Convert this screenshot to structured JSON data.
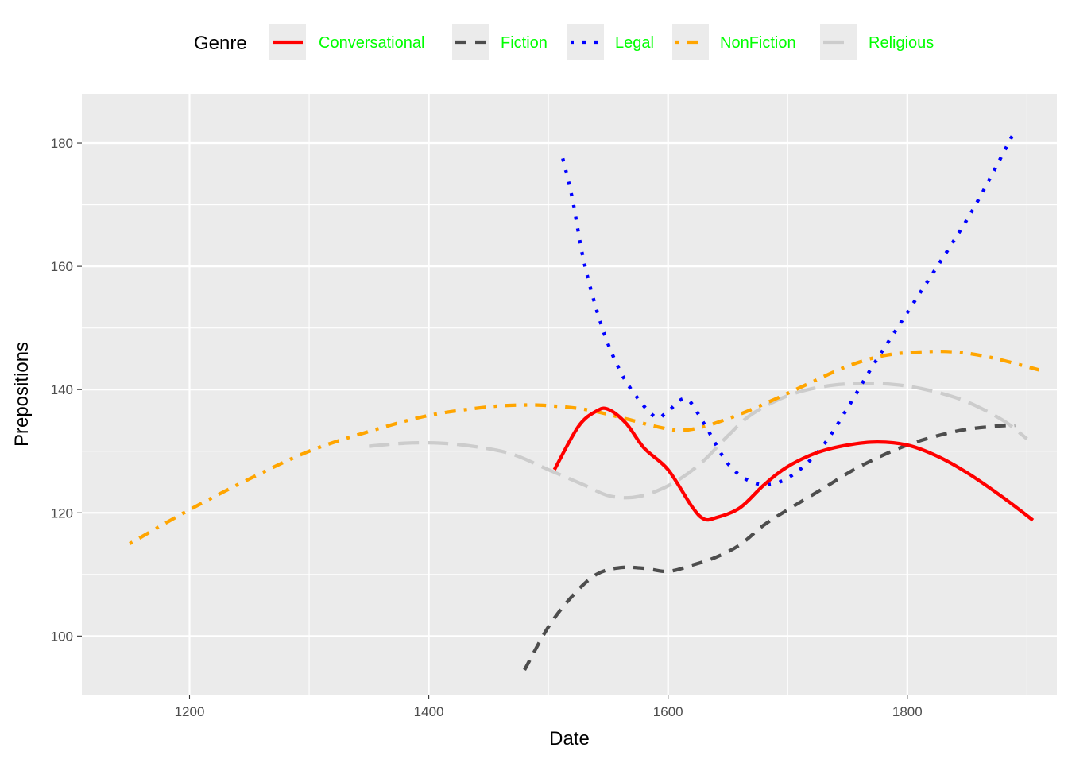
{
  "colors": {
    "panel_bg": "#ebebeb",
    "grid": "#ffffff",
    "legend_label": "#00ff00",
    "Conversational": "#ff0000",
    "Fiction": "#4d4d4d",
    "Legal": "#0000ff",
    "NonFiction": "#ffa500",
    "Religious": "#cccccc"
  },
  "chart_data": {
    "type": "line",
    "xlabel": "Date",
    "ylabel": "Prepositions",
    "xlim": [
      1110,
      1925
    ],
    "ylim": [
      90.5,
      188
    ],
    "x_ticks": [
      1200,
      1400,
      1600,
      1800
    ],
    "y_ticks": [
      100,
      120,
      140,
      160,
      180
    ],
    "grid": true,
    "legend": {
      "title": "Genre",
      "position": "top"
    },
    "series": [
      {
        "name": "Conversational",
        "line_style": "solid",
        "x": [
          1505,
          1525,
          1540,
          1550,
          1565,
          1580,
          1600,
          1620,
          1630,
          1640,
          1660,
          1680,
          1700,
          1725,
          1750,
          1775,
          1800,
          1825,
          1850,
          1880,
          1905
        ],
        "y": [
          127,
          134,
          136.5,
          136.8,
          134.5,
          130.5,
          127,
          121,
          119,
          119.2,
          120.8,
          124.5,
          127.5,
          129.8,
          131,
          131.5,
          131,
          129.2,
          126.5,
          122.5,
          118.8
        ]
      },
      {
        "name": "Fiction",
        "line_style": "dashed",
        "x": [
          1480,
          1500,
          1520,
          1540,
          1560,
          1580,
          1600,
          1620,
          1640,
          1660,
          1680,
          1700,
          1730,
          1760,
          1800,
          1840,
          1870,
          1890
        ],
        "y": [
          94.5,
          101.5,
          106.5,
          110,
          111.1,
          111,
          110.5,
          111.5,
          112.8,
          114.8,
          118,
          120.5,
          124,
          127.5,
          131,
          133.2,
          134,
          134.2
        ]
      },
      {
        "name": "Legal",
        "line_style": "dotted",
        "x": [
          1512,
          1520,
          1530,
          1545,
          1560,
          1575,
          1590,
          1600,
          1615,
          1630,
          1650,
          1670,
          1690,
          1710,
          1730,
          1750,
          1770,
          1790,
          1810,
          1840,
          1860,
          1890
        ],
        "y": [
          177.5,
          171,
          160.5,
          150,
          143,
          138.5,
          135.5,
          136.5,
          138.5,
          134.5,
          128,
          125,
          124.8,
          127,
          131,
          137,
          143.5,
          149.5,
          155.5,
          164.5,
          171,
          182
        ]
      },
      {
        "name": "NonFiction",
        "line_style": "dotdash",
        "x": [
          1150,
          1200,
          1250,
          1300,
          1350,
          1400,
          1450,
          1480,
          1500,
          1530,
          1560,
          1590,
          1610,
          1630,
          1660,
          1690,
          1720,
          1750,
          1780,
          1810,
          1840,
          1870,
          1910
        ],
        "y": [
          115,
          120.5,
          125.5,
          130,
          133.2,
          135.8,
          137.2,
          137.5,
          137.4,
          136.8,
          135.5,
          134,
          133.4,
          134,
          136,
          138.5,
          141.2,
          143.8,
          145.5,
          146.1,
          146.1,
          145.2,
          143.2
        ]
      },
      {
        "name": "Religious",
        "line_style": "longdash",
        "x": [
          1350,
          1380,
          1410,
          1440,
          1470,
          1500,
          1530,
          1550,
          1570,
          1590,
          1610,
          1630,
          1650,
          1670,
          1700,
          1730,
          1760,
          1790,
          1820,
          1850,
          1880,
          1900
        ],
        "y": [
          130.8,
          131.3,
          131.3,
          130.7,
          129.5,
          127,
          124.5,
          122.8,
          122.5,
          123.5,
          125.5,
          128.5,
          132.5,
          136,
          139,
          140.5,
          141,
          140.8,
          139.8,
          138,
          135,
          132
        ]
      }
    ]
  }
}
